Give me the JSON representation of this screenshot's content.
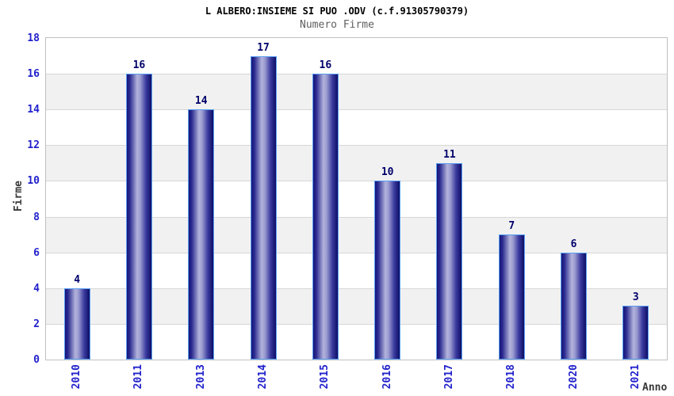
{
  "header": {
    "title": "L ALBERO:INSIEME SI PUO .ODV (c.f.91305790379)",
    "subtitle": "Numero Firme"
  },
  "chart_data": {
    "type": "bar",
    "title": "L ALBERO:INSIEME SI PUO .ODV (c.f.91305790379)",
    "subtitle": "Numero Firme",
    "xlabel": "Anno",
    "ylabel": "Firme",
    "categories": [
      "2010",
      "2011",
      "2013",
      "2014",
      "2015",
      "2016",
      "2017",
      "2018",
      "2020",
      "2021"
    ],
    "values": [
      4,
      16,
      14,
      17,
      16,
      10,
      11,
      7,
      6,
      3
    ],
    "ylim": [
      0,
      18
    ],
    "ytick_step": 2,
    "legend": "none",
    "grid": "horizontal-bands-alternating",
    "colors": {
      "tick_label": "#2222cc",
      "value_label": "#00006b",
      "bar_dark": "#15157a",
      "bar_mid": "#2a2a90",
      "bar_light": "#b3b3dc",
      "bar_edge_dark": "#0e0e66",
      "bar_border": "#5aa0f2",
      "band_gray": "#f1f1f1",
      "gridline": "#d7d7d7",
      "plot_border": "#c0c0c0",
      "axis_title": "#3a3a3a",
      "subtitle_color": "#606060",
      "title_color": "#000000"
    }
  }
}
